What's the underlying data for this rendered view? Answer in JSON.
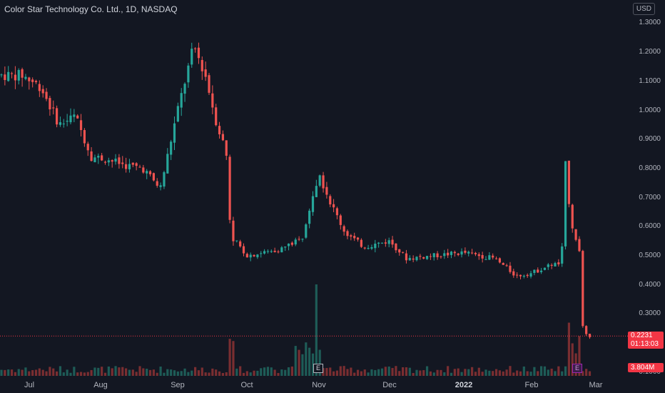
{
  "header": {
    "symbol_title": "Color Star Technology Co. Ltd., 1D, NASDAQ",
    "currency": "USD"
  },
  "price_axis": {
    "labels": [
      "1.3000",
      "1.2000",
      "1.1000",
      "1.0000",
      "0.9000",
      "0.8000",
      "0.7000",
      "0.6000",
      "0.5000",
      "0.4000",
      "0.3000",
      "0.1000"
    ]
  },
  "time_axis": {
    "labels": [
      "Jul",
      "Aug",
      "Sep",
      "Oct",
      "Nov",
      "Dec",
      "2022",
      "Feb",
      "Mar"
    ],
    "bold_label": "2022"
  },
  "last_price_tag": {
    "price": "0.2231",
    "countdown": "01:13:03",
    "color": "#f23645"
  },
  "volume_tag": {
    "value": "3.804M",
    "color": "#f23645"
  },
  "markers": {
    "earnings": "E",
    "dividend": "E"
  },
  "colors": {
    "background": "#131722",
    "up": "#26a69a",
    "down": "#ef5350",
    "up_volume": "#1e5c57",
    "down_volume": "#7a2e31"
  },
  "chart_data": {
    "type": "candlestick",
    "title": "Color Star Technology Co. Ltd., 1D, NASDAQ",
    "currency": "USD",
    "ylim": [
      0.1,
      1.3
    ],
    "x_ticks": [
      "Jul",
      "Aug",
      "Sep",
      "Oct",
      "Nov",
      "Dec",
      "2022",
      "Feb",
      "Mar"
    ],
    "last_price": 0.2231,
    "last_volume": "3.804M",
    "series": [
      {
        "name": "price",
        "anchors": [
          [
            "Jun 28",
            1.12
          ],
          [
            "Jul 6",
            1.08
          ],
          [
            "Jul 14",
            0.95
          ],
          [
            "Jul 21",
            0.98
          ],
          [
            "Jul 28",
            0.84
          ],
          [
            "Aug 4",
            0.83
          ],
          [
            "Aug 11",
            0.81
          ],
          [
            "Aug 18",
            0.8
          ],
          [
            "Aug 25",
            0.73
          ],
          [
            "Sep 1",
            1.0
          ],
          [
            "Sep 8",
            1.22
          ],
          [
            "Sep 13",
            1.12
          ],
          [
            "Sep 18",
            0.95
          ],
          [
            "Sep 22",
            0.86
          ],
          [
            "Sep 24",
            0.57
          ],
          [
            "Oct 1",
            0.5
          ],
          [
            "Oct 15",
            0.52
          ],
          [
            "Oct 25",
            0.56
          ],
          [
            "Nov 1",
            0.78
          ],
          [
            "Nov 6",
            0.68
          ],
          [
            "Nov 12",
            0.58
          ],
          [
            "Nov 20",
            0.53
          ],
          [
            "Dec 1",
            0.55
          ],
          [
            "Dec 8",
            0.49
          ],
          [
            "Dec 20",
            0.5
          ],
          [
            "Jan 1",
            0.51
          ],
          [
            "Jan 15",
            0.49
          ],
          [
            "Jan 25",
            0.43
          ],
          [
            "Feb 1",
            0.44
          ],
          [
            "Feb 10",
            0.47
          ],
          [
            "Feb 14",
            0.47
          ],
          [
            "Feb 16",
            0.85
          ],
          [
            "Feb 18",
            0.6
          ],
          [
            "Feb 22",
            0.52
          ],
          [
            "Feb 23",
            0.26
          ],
          [
            "Feb 25",
            0.2231
          ]
        ]
      }
    ]
  }
}
